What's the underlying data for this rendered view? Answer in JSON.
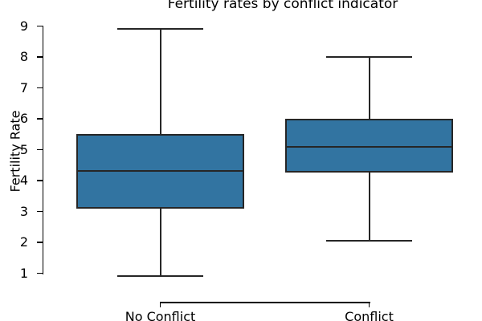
{
  "chart_data": {
    "type": "box",
    "title": "Fertility rates by conflict indicator",
    "ylabel": "Fertility Rate",
    "xlabel": "",
    "categories": [
      "No Conflict",
      "Conflict"
    ],
    "series": [
      {
        "name": "No Conflict",
        "whisker_low": 0.9,
        "q1": 3.1,
        "median": 4.3,
        "q3": 5.5,
        "whisker_high": 8.9
      },
      {
        "name": "Conflict",
        "whisker_low": 2.05,
        "q1": 4.25,
        "median": 5.1,
        "q3": 6.0,
        "whisker_high": 8.0
      }
    ],
    "yticks": [
      1,
      2,
      3,
      4,
      5,
      6,
      7,
      8,
      9
    ],
    "ylim": [
      1,
      9
    ],
    "grid": "off",
    "legend": "none",
    "box_fill_color": "#3274a1",
    "box_line_color": "#262626",
    "axis_color": "#000000"
  }
}
